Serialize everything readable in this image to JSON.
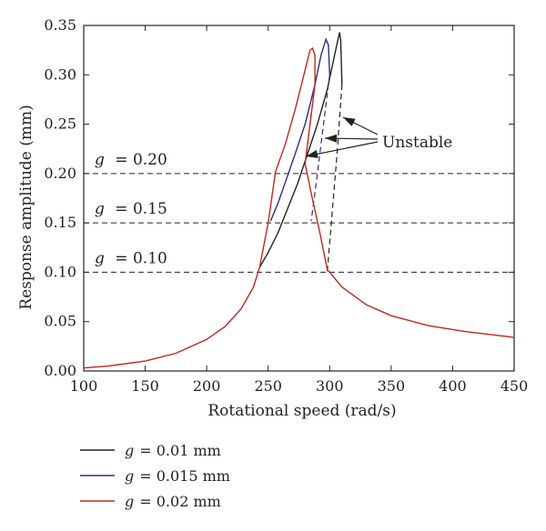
{
  "chart_data": {
    "type": "line",
    "xlabel": "Rotational speed (rad/s)",
    "ylabel": "Response amplitude (mm)",
    "xlim": [
      100,
      450
    ],
    "ylim": [
      0,
      0.35
    ],
    "x_ticks": [
      "100",
      "150",
      "200",
      "250",
      "300",
      "350",
      "400",
      "450"
    ],
    "y_ticks": [
      "0.00",
      "0.05",
      "0.10",
      "0.15",
      "0.20",
      "0.25",
      "0.30",
      "0.35"
    ],
    "grid": false,
    "legend_position": "bottom",
    "series": [
      {
        "name": "g = 0.01 mm",
        "color": "#222222",
        "stable_points": [
          [
            243,
            0.105
          ],
          [
            250,
            0.12
          ],
          [
            258,
            0.14
          ],
          [
            266,
            0.165
          ],
          [
            274,
            0.19
          ],
          [
            282,
            0.22
          ],
          [
            290,
            0.25
          ],
          [
            298,
            0.285
          ],
          [
            304,
            0.32
          ],
          [
            308,
            0.343
          ],
          [
            309,
            0.335
          ],
          [
            310,
            0.29
          ]
        ],
        "unstable_points": [
          [
            310,
            0.29
          ],
          [
            306,
            0.22
          ],
          [
            302,
            0.16
          ],
          [
            298,
            0.1
          ]
        ]
      },
      {
        "name": "g = 0.015 mm",
        "color": "#2b2b8c",
        "stable_points": [
          [
            252,
            0.152
          ],
          [
            258,
            0.17
          ],
          [
            265,
            0.195
          ],
          [
            272,
            0.22
          ],
          [
            280,
            0.25
          ],
          [
            288,
            0.29
          ],
          [
            293,
            0.32
          ],
          [
            297,
            0.336
          ],
          [
            299,
            0.33
          ],
          [
            300,
            0.3
          ]
        ],
        "unstable_points": [
          [
            300,
            0.3
          ],
          [
            295,
            0.25
          ],
          [
            290,
            0.2
          ],
          [
            285,
            0.152
          ]
        ]
      },
      {
        "name": "g = 0.02 mm",
        "color": "#c0281c",
        "points": [
          [
            100,
            0.003
          ],
          [
            120,
            0.005
          ],
          [
            150,
            0.01
          ],
          [
            175,
            0.018
          ],
          [
            200,
            0.032
          ],
          [
            215,
            0.045
          ],
          [
            228,
            0.063
          ],
          [
            238,
            0.085
          ],
          [
            243,
            0.105
          ],
          [
            250,
            0.15
          ],
          [
            256,
            0.202
          ],
          [
            264,
            0.23
          ],
          [
            272,
            0.265
          ],
          [
            278,
            0.295
          ],
          [
            284,
            0.325
          ],
          [
            286,
            0.327
          ],
          [
            288,
            0.32
          ],
          [
            288,
            0.29
          ],
          [
            284,
            0.25
          ],
          [
            280,
            0.21
          ],
          [
            285,
            0.18
          ],
          [
            292,
            0.14
          ],
          [
            298,
            0.103
          ],
          [
            310,
            0.085
          ],
          [
            330,
            0.067
          ],
          [
            350,
            0.056
          ],
          [
            380,
            0.046
          ],
          [
            410,
            0.04
          ],
          [
            450,
            0.034
          ]
        ],
        "unstable_points": [
          [
            288,
            0.29
          ],
          [
            283,
            0.24
          ],
          [
            280,
            0.21
          ]
        ]
      }
    ],
    "reference_lines": [
      {
        "y": 0.2,
        "label_var": "g",
        "label_value": "= 0.20"
      },
      {
        "y": 0.15,
        "label_var": "g",
        "label_value": "= 0.15"
      },
      {
        "y": 0.1,
        "label_var": "g",
        "label_value": "= 0.10"
      }
    ],
    "annotation": {
      "text": "Unstable"
    }
  },
  "legend": [
    {
      "var": "g",
      "value": "= 0.01 mm",
      "color": "#222222"
    },
    {
      "var": "g",
      "value": "= 0.015 mm",
      "color": "#2b2b8c"
    },
    {
      "var": "g",
      "value": "= 0.02 mm",
      "color": "#c0281c"
    }
  ]
}
